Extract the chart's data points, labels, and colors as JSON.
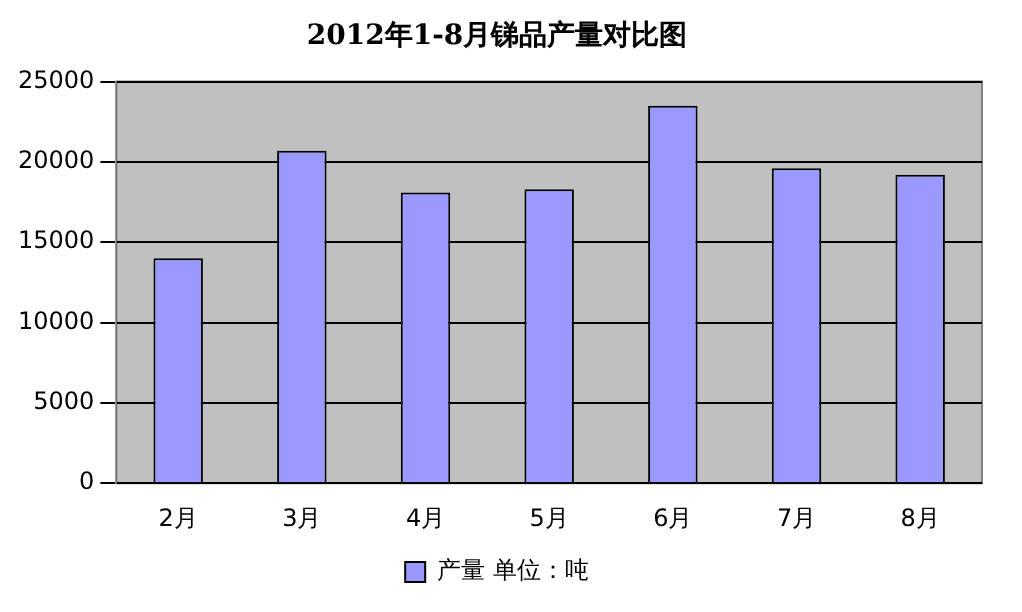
{
  "chart_data": {
    "type": "bar",
    "title": "2012年1-8月锑品产量对比图",
    "categories": [
      "2月",
      "3月",
      "4月",
      "5月",
      "6月",
      "7月",
      "8月"
    ],
    "series": [
      {
        "name": "产量 单位：吨",
        "color": "#9999ff",
        "values": [
          14000,
          20700,
          18100,
          18300,
          23500,
          19600,
          19200
        ]
      }
    ],
    "ylim": [
      0,
      25000
    ],
    "yticks": [
      0,
      5000,
      10000,
      15000,
      20000,
      25000
    ],
    "grid": "y",
    "legend": "bottom"
  }
}
